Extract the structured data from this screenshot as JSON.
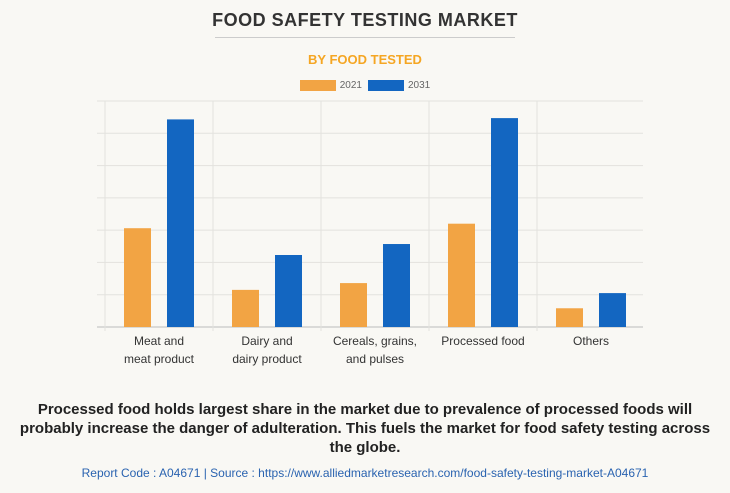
{
  "chart_data": {
    "type": "bar",
    "title": "FOOD SAFETY TESTING MARKET",
    "subtitle": "BY FOOD TESTED",
    "categories": [
      [
        "Meat and",
        "meat product"
      ],
      [
        "Dairy and",
        "dairy product"
      ],
      [
        "Cereals, grains,",
        "and pulses"
      ],
      [
        "Processed food"
      ],
      [
        "Others"
      ]
    ],
    "series": [
      {
        "name": "2021",
        "color": "#f2a444",
        "values": [
          3.06,
          1.15,
          1.36,
          3.2,
          0.58
        ]
      },
      {
        "name": "2031",
        "color": "#1366c1",
        "values": [
          6.43,
          2.23,
          2.57,
          6.47,
          1.05
        ]
      }
    ],
    "ylim": [
      0,
      7
    ],
    "yticks_labeled": false,
    "grid": true,
    "legend_position": "top-center"
  },
  "caption": "Processed food holds largest share in the market due to prevalence of processed foods will probably increase the danger of adulteration. This fuels the market for food safety testing across the globe.",
  "footer": "Report Code : A04671  |  Source : https://www.alliedmarketresearch.com/food-safety-testing-market-A04671"
}
